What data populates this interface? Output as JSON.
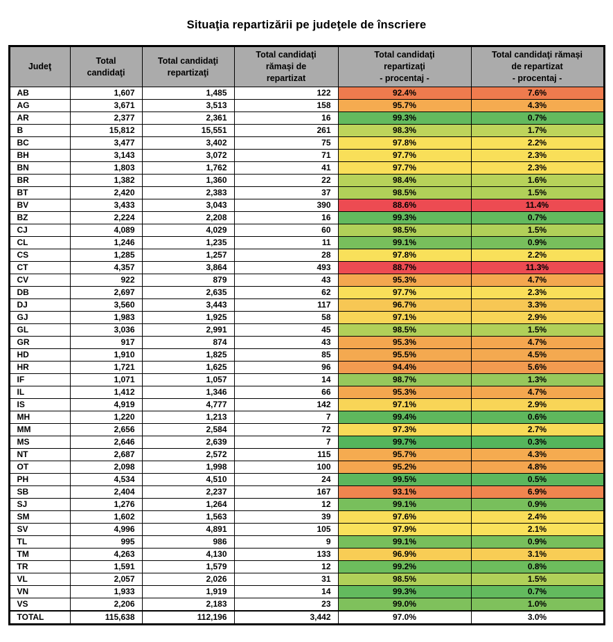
{
  "title": "Situaţia repartizării pe judeţele de înscriere",
  "table": {
    "headers": [
      "Judeţ",
      "Total\ncandidaţi",
      "Total candidaţi\nrepartizaţi",
      "Total candidaţi\nrămași de\nrepartizat",
      "Total candidaţi\nrepartizaţi\n- procentaj -",
      "Total candidaţi rămași\nde repartizat\n- procentaj -"
    ],
    "rows": [
      {
        "judet": "AB",
        "total": "1,607",
        "repartizati": "1,485",
        "ramasi": "122",
        "pct_repartizati": "92.4%",
        "pct_ramasi": "7.6%",
        "color": "#EF7B4E"
      },
      {
        "judet": "AG",
        "total": "3,671",
        "repartizati": "3,513",
        "ramasi": "158",
        "pct_repartizati": "95.7%",
        "pct_ramasi": "4.3%",
        "color": "#F5AB50"
      },
      {
        "judet": "AR",
        "total": "2,377",
        "repartizati": "2,361",
        "ramasi": "16",
        "pct_repartizati": "99.3%",
        "pct_ramasi": "0.7%",
        "color": "#63BA5E"
      },
      {
        "judet": "B",
        "total": "15,812",
        "repartizati": "15,551",
        "ramasi": "261",
        "pct_repartizati": "98.3%",
        "pct_ramasi": "1.7%",
        "color": "#BED45B"
      },
      {
        "judet": "BC",
        "total": "3,477",
        "repartizati": "3,402",
        "ramasi": "75",
        "pct_repartizati": "97.8%",
        "pct_ramasi": "2.2%",
        "color": "#F9E05A"
      },
      {
        "judet": "BH",
        "total": "3,143",
        "repartizati": "3,072",
        "ramasi": "71",
        "pct_repartizati": "97.7%",
        "pct_ramasi": "2.3%",
        "color": "#F9DF59"
      },
      {
        "judet": "BN",
        "total": "1,803",
        "repartizati": "1,762",
        "ramasi": "41",
        "pct_repartizati": "97.7%",
        "pct_ramasi": "2.3%",
        "color": "#F9DF59"
      },
      {
        "judet": "BR",
        "total": "1,382",
        "repartizati": "1,360",
        "ramasi": "22",
        "pct_repartizati": "98.4%",
        "pct_ramasi": "1.6%",
        "color": "#B7D25A"
      },
      {
        "judet": "BT",
        "total": "2,420",
        "repartizati": "2,383",
        "ramasi": "37",
        "pct_repartizati": "98.5%",
        "pct_ramasi": "1.5%",
        "color": "#B1D059"
      },
      {
        "judet": "BV",
        "total": "3,433",
        "repartizati": "3,043",
        "ramasi": "390",
        "pct_repartizati": "88.6%",
        "pct_ramasi": "11.4%",
        "color": "#ED4B52"
      },
      {
        "judet": "BZ",
        "total": "2,224",
        "repartizati": "2,208",
        "ramasi": "16",
        "pct_repartizati": "99.3%",
        "pct_ramasi": "0.7%",
        "color": "#63BA5E"
      },
      {
        "judet": "CJ",
        "total": "4,089",
        "repartizati": "4,029",
        "ramasi": "60",
        "pct_repartizati": "98.5%",
        "pct_ramasi": "1.5%",
        "color": "#B1D059"
      },
      {
        "judet": "CL",
        "total": "1,246",
        "repartizati": "1,235",
        "ramasi": "11",
        "pct_repartizati": "99.1%",
        "pct_ramasi": "0.9%",
        "color": "#78BF5C"
      },
      {
        "judet": "CS",
        "total": "1,285",
        "repartizati": "1,257",
        "ramasi": "28",
        "pct_repartizati": "97.8%",
        "pct_ramasi": "2.2%",
        "color": "#F9E05A"
      },
      {
        "judet": "CT",
        "total": "4,357",
        "repartizati": "3,864",
        "ramasi": "493",
        "pct_repartizati": "88.7%",
        "pct_ramasi": "11.3%",
        "color": "#ED4B52"
      },
      {
        "judet": "CV",
        "total": "922",
        "repartizati": "879",
        "ramasi": "43",
        "pct_repartizati": "95.3%",
        "pct_ramasi": "4.7%",
        "color": "#F4A74F"
      },
      {
        "judet": "DB",
        "total": "2,697",
        "repartizati": "2,635",
        "ramasi": "62",
        "pct_repartizati": "97.7%",
        "pct_ramasi": "2.3%",
        "color": "#F9DF59"
      },
      {
        "judet": "DJ",
        "total": "3,560",
        "repartizati": "3,443",
        "ramasi": "117",
        "pct_repartizati": "96.7%",
        "pct_ramasi": "3.3%",
        "color": "#F7C754"
      },
      {
        "judet": "GJ",
        "total": "1,983",
        "repartizati": "1,925",
        "ramasi": "58",
        "pct_repartizati": "97.1%",
        "pct_ramasi": "2.9%",
        "color": "#F8D557"
      },
      {
        "judet": "GL",
        "total": "3,036",
        "repartizati": "2,991",
        "ramasi": "45",
        "pct_repartizati": "98.5%",
        "pct_ramasi": "1.5%",
        "color": "#B1D059"
      },
      {
        "judet": "GR",
        "total": "917",
        "repartizati": "874",
        "ramasi": "43",
        "pct_repartizati": "95.3%",
        "pct_ramasi": "4.7%",
        "color": "#F4A74F"
      },
      {
        "judet": "HD",
        "total": "1,910",
        "repartizati": "1,825",
        "ramasi": "85",
        "pct_repartizati": "95.5%",
        "pct_ramasi": "4.5%",
        "color": "#F4A950"
      },
      {
        "judet": "HR",
        "total": "1,721",
        "repartizati": "1,625",
        "ramasi": "96",
        "pct_repartizati": "94.4%",
        "pct_ramasi": "5.6%",
        "color": "#F29B50"
      },
      {
        "judet": "IF",
        "total": "1,071",
        "repartizati": "1,057",
        "ramasi": "14",
        "pct_repartizati": "98.7%",
        "pct_ramasi": "1.3%",
        "color": "#97C85C"
      },
      {
        "judet": "IL",
        "total": "1,412",
        "repartizati": "1,346",
        "ramasi": "66",
        "pct_repartizati": "95.3%",
        "pct_ramasi": "4.7%",
        "color": "#F4A74F"
      },
      {
        "judet": "IS",
        "total": "4,919",
        "repartizati": "4,777",
        "ramasi": "142",
        "pct_repartizati": "97.1%",
        "pct_ramasi": "2.9%",
        "color": "#F8D557"
      },
      {
        "judet": "MH",
        "total": "1,220",
        "repartizati": "1,213",
        "ramasi": "7",
        "pct_repartizati": "99.4%",
        "pct_ramasi": "0.6%",
        "color": "#5FB85D"
      },
      {
        "judet": "MM",
        "total": "2,656",
        "repartizati": "2,584",
        "ramasi": "72",
        "pct_repartizati": "97.3%",
        "pct_ramasi": "2.7%",
        "color": "#F9DA58"
      },
      {
        "judet": "MS",
        "total": "2,646",
        "repartizati": "2,639",
        "ramasi": "7",
        "pct_repartizati": "99.7%",
        "pct_ramasi": "0.3%",
        "color": "#55B55C"
      },
      {
        "judet": "NT",
        "total": "2,687",
        "repartizati": "2,572",
        "ramasi": "115",
        "pct_repartizati": "95.7%",
        "pct_ramasi": "4.3%",
        "color": "#F5AB50"
      },
      {
        "judet": "OT",
        "total": "2,098",
        "repartizati": "1,998",
        "ramasi": "100",
        "pct_repartizati": "95.2%",
        "pct_ramasi": "4.8%",
        "color": "#F4A64F"
      },
      {
        "judet": "PH",
        "total": "4,534",
        "repartizati": "4,510",
        "ramasi": "24",
        "pct_repartizati": "99.5%",
        "pct_ramasi": "0.5%",
        "color": "#5CB75D"
      },
      {
        "judet": "SB",
        "total": "2,404",
        "repartizati": "2,237",
        "ramasi": "167",
        "pct_repartizati": "93.1%",
        "pct_ramasi": "6.9%",
        "color": "#F0854F"
      },
      {
        "judet": "SJ",
        "total": "1,276",
        "repartizati": "1,264",
        "ramasi": "12",
        "pct_repartizati": "99.1%",
        "pct_ramasi": "0.9%",
        "color": "#78BF5C"
      },
      {
        "judet": "SM",
        "total": "1,602",
        "repartizati": "1,563",
        "ramasi": "39",
        "pct_repartizati": "97.6%",
        "pct_ramasi": "2.4%",
        "color": "#F9DE59"
      },
      {
        "judet": "SV",
        "total": "4,996",
        "repartizati": "4,891",
        "ramasi": "105",
        "pct_repartizati": "97.9%",
        "pct_ramasi": "2.1%",
        "color": "#FAE15B"
      },
      {
        "judet": "TL",
        "total": "995",
        "repartizati": "986",
        "ramasi": "9",
        "pct_repartizati": "99.1%",
        "pct_ramasi": "0.9%",
        "color": "#78BF5C"
      },
      {
        "judet": "TM",
        "total": "4,263",
        "repartizati": "4,130",
        "ramasi": "133",
        "pct_repartizati": "96.9%",
        "pct_ramasi": "3.1%",
        "color": "#F8CD55"
      },
      {
        "judet": "TR",
        "total": "1,591",
        "repartizati": "1,579",
        "ramasi": "12",
        "pct_repartizati": "99.2%",
        "pct_ramasi": "0.8%",
        "color": "#6DBD5D"
      },
      {
        "judet": "VL",
        "total": "2,057",
        "repartizati": "2,026",
        "ramasi": "31",
        "pct_repartizati": "98.5%",
        "pct_ramasi": "1.5%",
        "color": "#B1D059"
      },
      {
        "judet": "VN",
        "total": "1,933",
        "repartizati": "1,919",
        "ramasi": "14",
        "pct_repartizati": "99.3%",
        "pct_ramasi": "0.7%",
        "color": "#63BA5E"
      },
      {
        "judet": "VS",
        "total": "2,206",
        "repartizati": "2,183",
        "ramasi": "23",
        "pct_repartizati": "99.0%",
        "pct_ramasi": "1.0%",
        "color": "#7FC15C"
      },
      {
        "judet": "TOTAL",
        "total": "115,638",
        "repartizati": "112,196",
        "ramasi": "3,442",
        "pct_repartizati": "97.0%",
        "pct_ramasi": "3.0%",
        "color": "#FFFFFF",
        "is_total": true
      }
    ],
    "header_bg": "#ABABAB",
    "scale_colors": {
      "low": "#ED4B52",
      "mid": "#F9DF59",
      "high": "#55B55C"
    }
  }
}
